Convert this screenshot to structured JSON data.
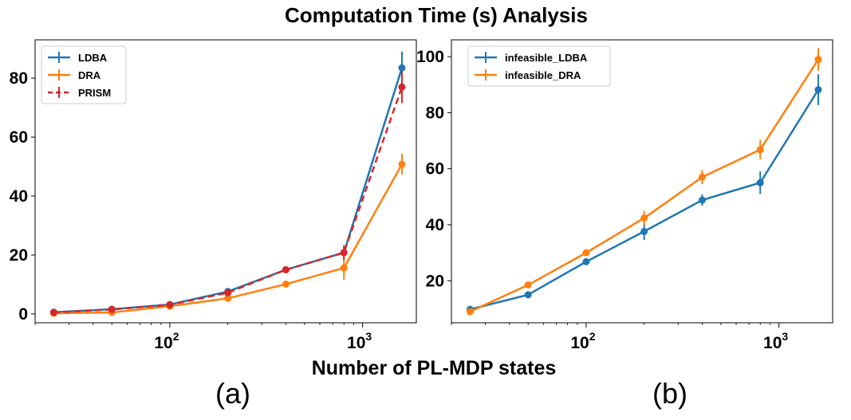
{
  "figure": {
    "title": "Computation Time (s) Analysis",
    "xlabel": "Number of PL-MDP states",
    "panel_labels": [
      "(a)",
      "(b)"
    ]
  },
  "chart_data": [
    {
      "type": "line",
      "panel": "(a)",
      "xscale": "log",
      "x": [
        25,
        50,
        100,
        200,
        400,
        800,
        1600
      ],
      "xlim": [
        20,
        1900
      ],
      "ylim": [
        -3,
        93
      ],
      "yticks": [
        0,
        20,
        40,
        60,
        80
      ],
      "xticks": [
        {
          "value": 100,
          "base": "10",
          "exp": "2"
        },
        {
          "value": 1000,
          "base": "10",
          "exp": "3"
        }
      ],
      "legend_position": "top-left",
      "series": [
        {
          "name": "LDBA",
          "color": "#1f77b4",
          "dashed": false,
          "values": [
            0.6,
            1.6,
            3.2,
            7.6,
            15.0,
            20.8,
            83.5
          ],
          "errors": [
            0.4,
            0.5,
            0.6,
            1.0,
            1.0,
            1.5,
            5.5
          ]
        },
        {
          "name": "DRA",
          "color": "#ff7f0e",
          "dashed": false,
          "values": [
            0.2,
            0.5,
            2.6,
            5.3,
            10.1,
            15.6,
            50.8
          ],
          "errors": [
            0.3,
            0.4,
            0.5,
            0.8,
            1.0,
            4.0,
            3.5
          ]
        },
        {
          "name": "PRISM",
          "color": "#d62728",
          "dashed": true,
          "values": [
            0.5,
            1.5,
            3.1,
            7.2,
            15.0,
            20.8,
            77.0
          ],
          "errors": [
            0.3,
            0.4,
            0.5,
            0.8,
            1.0,
            2.5,
            5.5
          ]
        }
      ]
    },
    {
      "type": "line",
      "panel": "(b)",
      "xscale": "log",
      "x": [
        25,
        50,
        100,
        200,
        400,
        800,
        1600
      ],
      "xlim": [
        20,
        1900
      ],
      "ylim": [
        5,
        106
      ],
      "yticks": [
        20,
        40,
        60,
        80,
        100
      ],
      "xticks": [
        {
          "value": 100,
          "base": "10",
          "exp": "2"
        },
        {
          "value": 1000,
          "base": "10",
          "exp": "3"
        }
      ],
      "legend_position": "top-left",
      "series": [
        {
          "name": "infeasible_LDBA",
          "color": "#1f77b4",
          "dashed": false,
          "values": [
            9.8,
            15.0,
            26.8,
            37.6,
            48.8,
            55.0,
            88.2
          ],
          "errors": [
            0.5,
            1.0,
            1.0,
            3.0,
            2.0,
            4.0,
            5.5
          ]
        },
        {
          "name": "infeasible_DRA",
          "color": "#ff7f0e",
          "dashed": false,
          "values": [
            9.0,
            18.5,
            30.0,
            42.4,
            57.0,
            66.8,
            99.0
          ],
          "errors": [
            0.5,
            1.0,
            1.0,
            2.5,
            2.5,
            3.5,
            4.0
          ]
        }
      ]
    }
  ]
}
